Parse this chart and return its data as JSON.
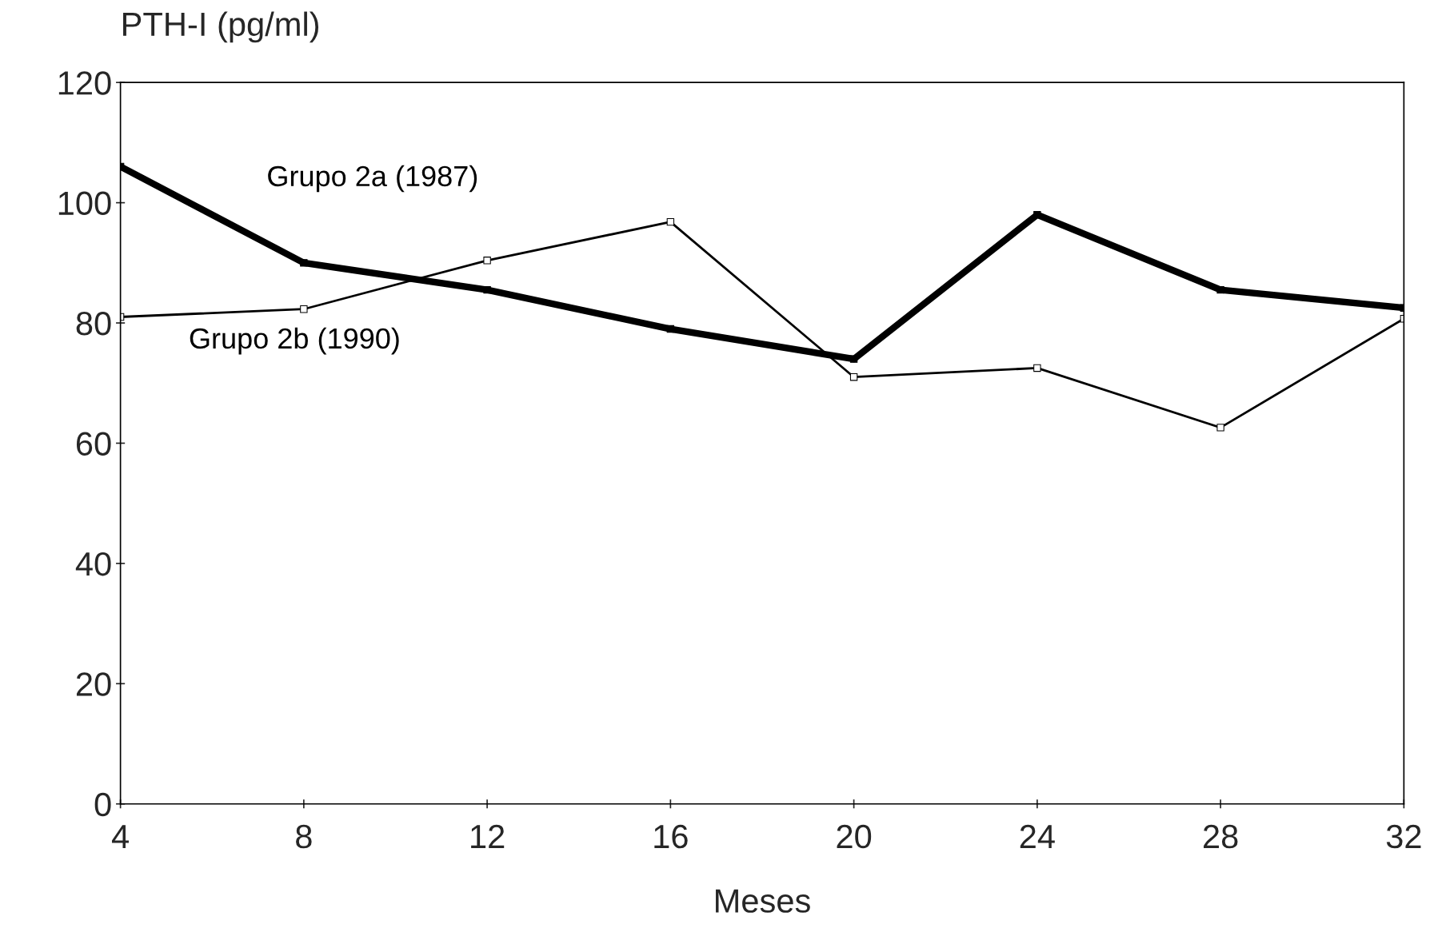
{
  "chart_data": {
    "type": "line",
    "ylabel": "PTH-I (pg/ml)",
    "xlabel": "Meses",
    "x": [
      4,
      8,
      12,
      16,
      20,
      24,
      28,
      32
    ],
    "series": [
      {
        "name": "Grupo 2a (1987)",
        "color": "#000000",
        "values": [
          106,
          90,
          85.5,
          79,
          74,
          98,
          85.5,
          82.5
        ]
      },
      {
        "name": "Grupo 2b (1990)",
        "color": "#000000",
        "values": [
          81,
          82.3,
          90.4,
          96.8,
          71,
          72.5,
          62.6,
          80.7
        ]
      }
    ],
    "xlim": [
      4,
      32
    ],
    "xticks": [
      4,
      8,
      12,
      16,
      20,
      24,
      28,
      32
    ],
    "ylim": [
      0,
      120
    ],
    "yticks": [
      0,
      20,
      40,
      60,
      80,
      100,
      120
    ],
    "marker": "square",
    "line_style": "solid",
    "grid": false,
    "legend": false
  }
}
